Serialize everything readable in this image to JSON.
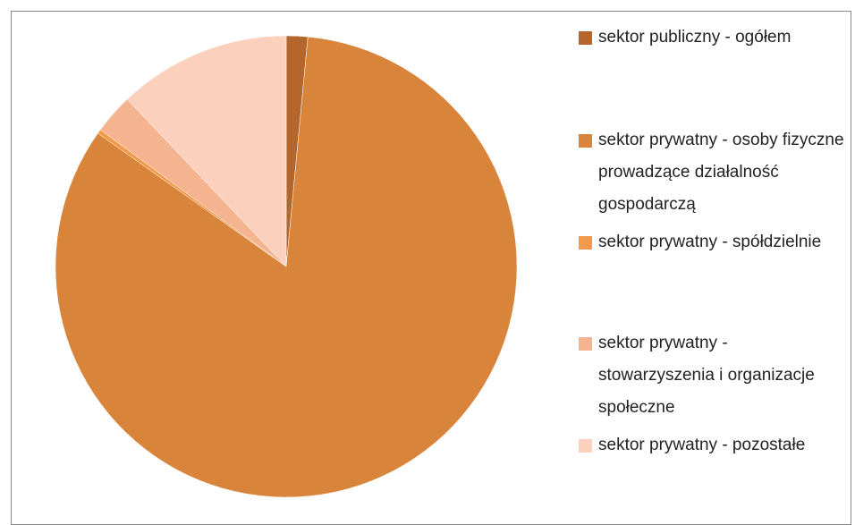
{
  "chart_data": {
    "type": "pie",
    "categories": [
      "sektor publiczny - ogółem",
      "sektor prywatny - osoby fizyczne prowadzące działalność gospodarczą",
      "sektor prywatny - spółdzielnie",
      "sektor prywatny - stowarzyszenia i organizacje społeczne",
      "sektor prywatny - pozostałe"
    ],
    "values": [
      1.5,
      83.3,
      0.3,
      2.8,
      12.1
    ],
    "colors": [
      "#b5662c",
      "#d9843b",
      "#f29a4a",
      "#f4b48f",
      "#fbd0bd"
    ],
    "legend": "right"
  }
}
